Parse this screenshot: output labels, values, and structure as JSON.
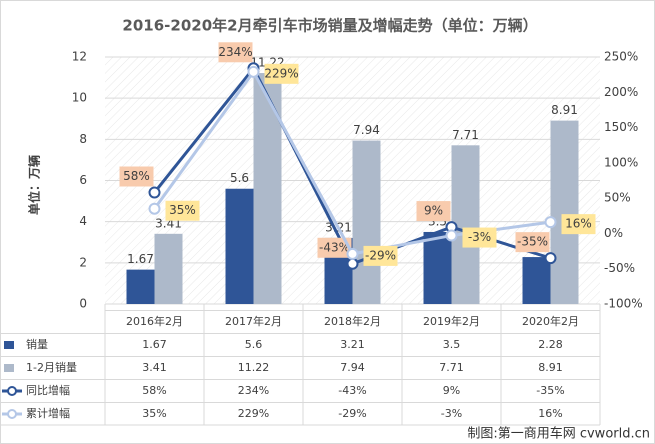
{
  "chart_data": {
    "type": "bar",
    "title": "2016-2020年2月牵引车市场销量及增幅走势（单位：万辆）",
    "y_label": "单位：万辆",
    "categories": [
      "2016年2月",
      "2017年2月",
      "2018年2月",
      "2019年2月",
      "2020年2月"
    ],
    "ylim": [
      0,
      12
    ],
    "yticks": [
      0,
      2,
      4,
      6,
      8,
      10,
      12
    ],
    "y2lim": [
      -100,
      250
    ],
    "y2ticks": [
      {
        "value": -100,
        "label": "-100%"
      },
      {
        "value": -50,
        "label": "-50%"
      },
      {
        "value": 0,
        "label": "0%"
      },
      {
        "value": 50,
        "label": "50%"
      },
      {
        "value": 100,
        "label": "100%"
      },
      {
        "value": 150,
        "label": "150%"
      },
      {
        "value": 200,
        "label": "200%"
      },
      {
        "value": 250,
        "label": "250%"
      }
    ],
    "grid": true,
    "series": [
      {
        "name": "销量",
        "type": "bar",
        "color": "#2F5597",
        "values": [
          1.67,
          5.6,
          3.21,
          3.5,
          2.28
        ]
      },
      {
        "name": "1-2月销量",
        "type": "bar",
        "color": "#ADB9CA",
        "values": [
          3.41,
          11.22,
          7.94,
          7.71,
          8.91
        ]
      },
      {
        "name": "同比增幅",
        "type": "line",
        "axis": "y2",
        "color": "#2F5597",
        "label_color": "#F8CBAD",
        "values": [
          58,
          234,
          -43,
          9,
          -35
        ],
        "value_labels": [
          "58%",
          "234%",
          "-43%",
          "9%",
          "-35%"
        ]
      },
      {
        "name": "累计增幅",
        "type": "line",
        "axis": "y2",
        "color": "#B4C7E7",
        "label_color": "#FFE699",
        "values": [
          35,
          229,
          -29,
          -3,
          16
        ],
        "value_labels": [
          "35%",
          "229%",
          "-29%",
          "-3%",
          "16%"
        ]
      }
    ],
    "watermark": "制图:第一商用车网 cvworld.cn"
  }
}
